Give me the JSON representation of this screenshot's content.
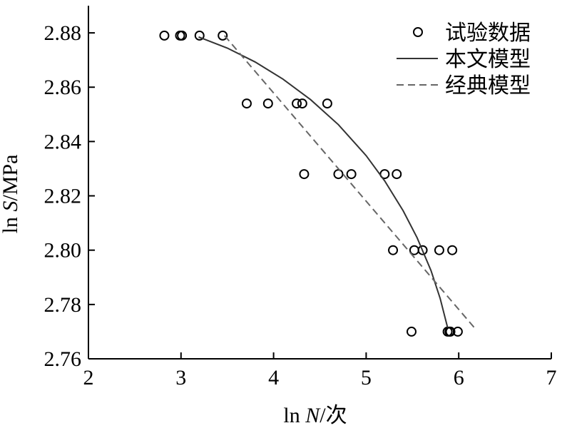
{
  "chart_data": {
    "type": "scatter",
    "x_axis": {
      "label_prefix": "ln ",
      "label_var": "N",
      "label_suffix": "/次",
      "range": [
        2,
        7
      ],
      "ticks": [
        2,
        3,
        4,
        5,
        6,
        7
      ],
      "tick_labels": [
        "2",
        "3",
        "4",
        "5",
        "6",
        "7"
      ]
    },
    "y_axis": {
      "label_prefix": "ln ",
      "label_var": "S",
      "label_suffix": "/MPa",
      "range": [
        2.76,
        2.89
      ],
      "ticks": [
        2.76,
        2.78,
        2.8,
        2.82,
        2.84,
        2.86,
        2.88
      ],
      "tick_labels": [
        "2.76",
        "2.78",
        "2.80",
        "2.82",
        "2.84",
        "2.86",
        "2.88"
      ]
    },
    "grid": false,
    "legend_placement": "top-right",
    "series": [
      {
        "name": "试验数据",
        "kind": "markers",
        "color": "#000000",
        "points": [
          {
            "x": 2.82,
            "y": 2.879
          },
          {
            "x": 2.99,
            "y": 2.879
          },
          {
            "x": 3.01,
            "y": 2.879
          },
          {
            "x": 3.2,
            "y": 2.879
          },
          {
            "x": 3.45,
            "y": 2.879
          },
          {
            "x": 3.71,
            "y": 2.854
          },
          {
            "x": 3.94,
            "y": 2.854
          },
          {
            "x": 4.25,
            "y": 2.854
          },
          {
            "x": 4.31,
            "y": 2.854
          },
          {
            "x": 4.58,
            "y": 2.854
          },
          {
            "x": 4.33,
            "y": 2.828
          },
          {
            "x": 4.7,
            "y": 2.828
          },
          {
            "x": 4.84,
            "y": 2.828
          },
          {
            "x": 5.2,
            "y": 2.828
          },
          {
            "x": 5.33,
            "y": 2.828
          },
          {
            "x": 5.29,
            "y": 2.8
          },
          {
            "x": 5.52,
            "y": 2.8
          },
          {
            "x": 5.61,
            "y": 2.8
          },
          {
            "x": 5.79,
            "y": 2.8
          },
          {
            "x": 5.93,
            "y": 2.8
          },
          {
            "x": 5.49,
            "y": 2.77
          },
          {
            "x": 5.88,
            "y": 2.77
          },
          {
            "x": 5.9,
            "y": 2.77
          },
          {
            "x": 5.91,
            "y": 2.77
          },
          {
            "x": 5.99,
            "y": 2.77
          }
        ]
      },
      {
        "name": "本文模型",
        "kind": "solid-line",
        "color": "#333333",
        "points": [
          {
            "x": 3.19,
            "y": 2.8785
          },
          {
            "x": 3.5,
            "y": 2.8744
          },
          {
            "x": 3.8,
            "y": 2.8693
          },
          {
            "x": 4.1,
            "y": 2.863
          },
          {
            "x": 4.4,
            "y": 2.8554
          },
          {
            "x": 4.7,
            "y": 2.8462
          },
          {
            "x": 5.0,
            "y": 2.8348
          },
          {
            "x": 5.2,
            "y": 2.8255
          },
          {
            "x": 5.4,
            "y": 2.8145
          },
          {
            "x": 5.55,
            "y": 2.8046
          },
          {
            "x": 5.7,
            "y": 2.7925
          },
          {
            "x": 5.8,
            "y": 2.7822
          },
          {
            "x": 5.88,
            "y": 2.7715
          }
        ]
      },
      {
        "name": "经典模型",
        "kind": "dashed-line",
        "color": "#666666",
        "points": [
          {
            "x": 3.47,
            "y": 2.879
          },
          {
            "x": 6.18,
            "y": 2.771
          }
        ]
      }
    ]
  }
}
